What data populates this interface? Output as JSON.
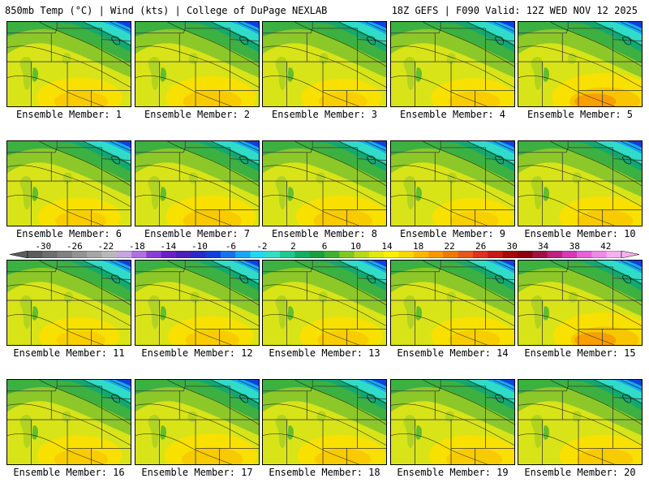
{
  "header": {
    "left": "850mb Temp (°C) | Wind (kts) | College of DuPage NEXLAB",
    "right": "18Z GEFS | F090 Valid: 12Z WED NOV 12 2025"
  },
  "members": [
    {
      "label": "Ensemble Member: 1",
      "warmth": 0.45
    },
    {
      "label": "Ensemble Member: 2",
      "warmth": 0.55
    },
    {
      "label": "Ensemble Member: 3",
      "warmth": 0.35
    },
    {
      "label": "Ensemble Member: 4",
      "warmth": 0.4
    },
    {
      "label": "Ensemble Member: 5",
      "warmth": 0.8
    },
    {
      "label": "Ensemble Member: 6",
      "warmth": 0.4
    },
    {
      "label": "Ensemble Member: 7",
      "warmth": 0.55
    },
    {
      "label": "Ensemble Member: 8",
      "warmth": 0.55
    },
    {
      "label": "Ensemble Member: 9",
      "warmth": 0.35
    },
    {
      "label": "Ensemble Member: 10",
      "warmth": 0.5
    },
    {
      "label": "Ensemble Member: 11",
      "warmth": 0.35
    },
    {
      "label": "Ensemble Member: 12",
      "warmth": 0.45
    },
    {
      "label": "Ensemble Member: 13",
      "warmth": 0.4
    },
    {
      "label": "Ensemble Member: 14",
      "warmth": 0.4
    },
    {
      "label": "Ensemble Member: 15",
      "warmth": 0.75
    },
    {
      "label": "Ensemble Member: 16",
      "warmth": 0.45
    },
    {
      "label": "Ensemble Member: 17",
      "warmth": 0.6
    },
    {
      "label": "Ensemble Member: 18",
      "warmth": 0.5
    },
    {
      "label": "Ensemble Member: 19",
      "warmth": 0.5
    },
    {
      "label": "Ensemble Member: 20",
      "warmth": 0.5
    }
  ],
  "colorbar": {
    "labels": [
      "-30",
      "-26",
      "-22",
      "-18",
      "-14",
      "-10",
      "-6",
      "-2",
      "2",
      "6",
      "10",
      "14",
      "18",
      "22",
      "26",
      "30",
      "34",
      "38",
      "42"
    ],
    "min": -32,
    "max": 44,
    "colors": [
      "#5c5c5c",
      "#6e6e6e",
      "#808080",
      "#939393",
      "#a6a6a6",
      "#b9b9b9",
      "#c6a6e0",
      "#b070e0",
      "#8a3cd8",
      "#6a1fc8",
      "#4b1fb8",
      "#2a28c8",
      "#1040e0",
      "#1870f0",
      "#18a8f0",
      "#20d8f0",
      "#30e0c0",
      "#20c890",
      "#10b060",
      "#18a040",
      "#40b030",
      "#80c820",
      "#b8d818",
      "#e0e810",
      "#f8f000",
      "#f8d800",
      "#f8b800",
      "#f89800",
      "#f07800",
      "#e85818",
      "#e03020",
      "#c81818",
      "#a80808",
      "#880010",
      "#a01040",
      "#c02080",
      "#d838b8",
      "#e860d8",
      "#f088e8",
      "#f8b0f0"
    ]
  }
}
